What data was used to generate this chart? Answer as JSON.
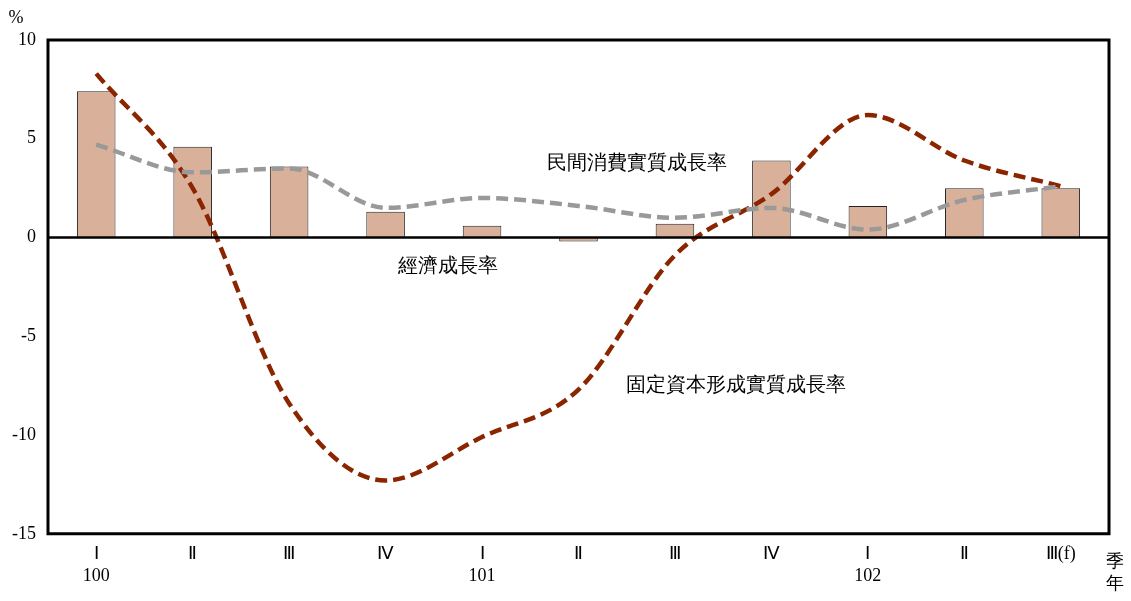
{
  "chart_data": {
    "type": "bar",
    "ylabel": "%",
    "xlabel": "季年",
    "categories": [
      "Ⅰ\n100",
      "Ⅱ",
      "Ⅲ",
      "Ⅳ",
      "Ⅰ\n101",
      "Ⅱ",
      "Ⅲ",
      "Ⅳ",
      "Ⅰ\n102",
      "Ⅱ",
      "Ⅲ(f)"
    ],
    "series": [
      {
        "name": "經濟成長率",
        "color": "#d9b09a",
        "values": [
          7.4,
          4.6,
          3.6,
          1.3,
          0.6,
          -0.2,
          0.7,
          3.9,
          1.6,
          2.5,
          2.5
        ]
      },
      {
        "name": "民間消費實質成長率",
        "type": "line",
        "color": "#999999",
        "line_style": "dashed",
        "values": [
          4.7,
          3.3,
          3.5,
          1.5,
          2.0,
          1.6,
          1.0,
          1.5,
          0.4,
          1.9,
          2.6
        ]
      },
      {
        "name": "固定資本形成實質成長率",
        "type": "line",
        "color": "#8b2500",
        "line_style": "dashed",
        "values": [
          8.3,
          2.5,
          -8.4,
          -12.3,
          -10.1,
          -7.7,
          -0.9,
          2.2,
          6.2,
          3.9,
          2.6
        ]
      }
    ],
    "ylim": [
      -15,
      10
    ],
    "yticks": [
      -15,
      -10,
      -5,
      0,
      5,
      10
    ],
    "grid": false,
    "legend": false,
    "marker": "none",
    "ref_lines": [
      {
        "axis": "y",
        "value": 0
      }
    ]
  }
}
